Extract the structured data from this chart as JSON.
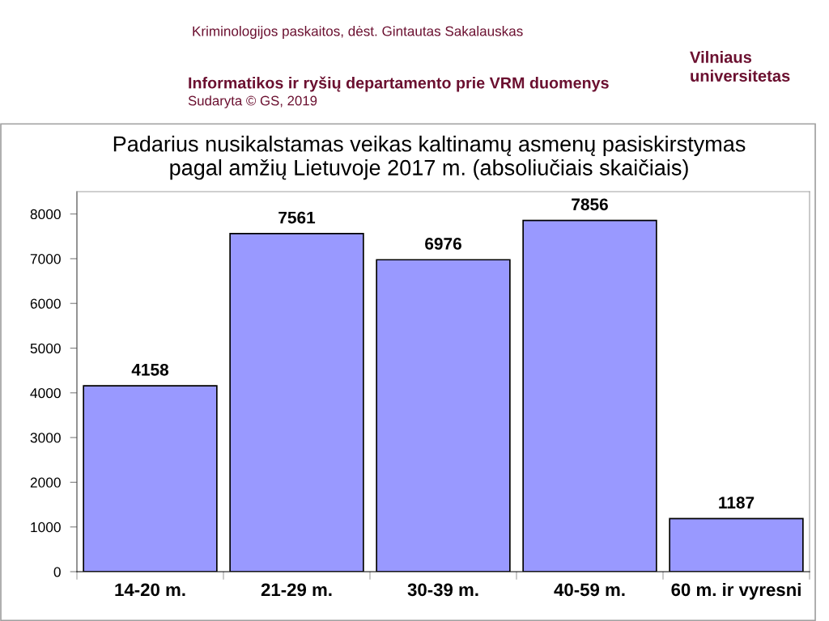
{
  "chart_data": {
    "type": "bar",
    "title": "Padarius nusikalstamas veikas kaltinamų asmenų pasiskirstymas\npagal amžių Lietuvoje 2017 m. (absoliučiais skaičiais)",
    "categories": [
      "14-20 m.",
      "21-29 m.",
      "30-39 m.",
      "40-59 m.",
      "60 m. ir vyresni"
    ],
    "values": [
      4158,
      7561,
      6976,
      7856,
      1187
    ],
    "color": "#9999ff",
    "ylim": [
      0,
      8500
    ],
    "yticks": [
      0,
      1000,
      2000,
      3000,
      4000,
      5000,
      6000,
      7000,
      8000
    ],
    "data_labels": true,
    "annotations": [
      "Kriminologijos paskaitos, dėst. Gintautas Sakalauskas",
      "Informatikos ir ryšių departamento prie VRM duomenys",
      "Sudaryta © GS, 2019",
      "Vilniaus\nuniversitetas"
    ]
  }
}
